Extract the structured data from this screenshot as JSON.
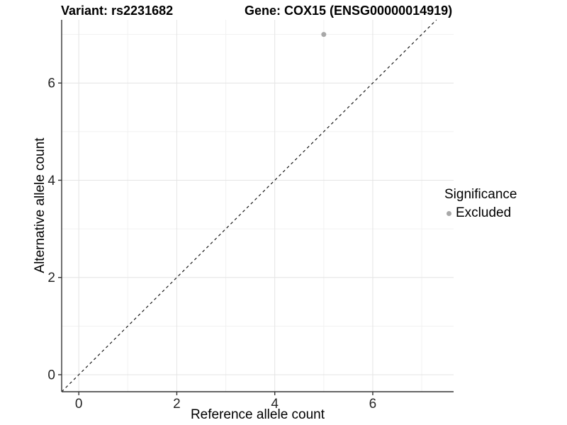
{
  "chart_data": {
    "type": "scatter",
    "title_variant": "Variant: rs2231682",
    "title_gene": "Gene: COX15 (ENSG00000014919)",
    "xlabel": "Reference allele count",
    "ylabel": "Alternative allele count",
    "xlim": [
      -0.35,
      7.65
    ],
    "ylim": [
      -0.35,
      7.3
    ],
    "x_major_ticks": [
      0,
      2,
      4,
      6
    ],
    "y_major_ticks": [
      0,
      2,
      4,
      6
    ],
    "x_minor_gridlines": [
      1,
      3,
      5,
      7
    ],
    "y_minor_gridlines": [
      1,
      3,
      5,
      7
    ],
    "grid": "major-and-minor",
    "series": [
      {
        "name": "Excluded",
        "color": "#a8a8a8",
        "marker": "circle",
        "points": [
          {
            "x": 5,
            "y": 7
          }
        ]
      }
    ],
    "reference_line": {
      "type": "identity",
      "equation": "y = x",
      "style": "dashed",
      "color": "#1a1a1a"
    },
    "legend": {
      "title": "Significance",
      "position": "right",
      "entries": [
        {
          "label": "Excluded",
          "color": "#a8a8a8",
          "marker": "circle"
        }
      ]
    }
  },
  "colors": {
    "background": "#ffffff",
    "axis_line": "#333333",
    "tick": "#333333",
    "grid_major": "#e4e4e4",
    "grid_minor": "#f1f1f1",
    "text": "#000000",
    "tick_label": "#262626"
  }
}
